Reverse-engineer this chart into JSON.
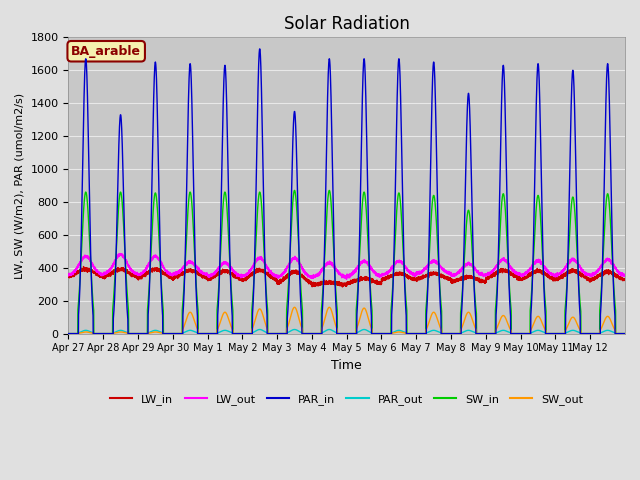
{
  "title": "Solar Radiation",
  "xlabel": "Time",
  "ylabel": "LW, SW (W/m2), PAR (umol/m2/s)",
  "ylim": [
    0,
    1800
  ],
  "yticks": [
    0,
    200,
    400,
    600,
    800,
    1000,
    1200,
    1400,
    1600,
    1800
  ],
  "background_color": "#e0e0e0",
  "plot_bg_color": "#c8c8c8",
  "grid_color": "#e8e8e8",
  "legend_label": "BA_arable",
  "legend_box_color": "#f5f0b0",
  "legend_box_edge": "#8b0000",
  "series": {
    "LW_in": {
      "color": "#cc0000",
      "lw": 1.0
    },
    "LW_out": {
      "color": "#ff00ff",
      "lw": 1.0
    },
    "PAR_in": {
      "color": "#0000cc",
      "lw": 1.0
    },
    "PAR_out": {
      "color": "#00cccc",
      "lw": 1.0
    },
    "SW_in": {
      "color": "#00cc00",
      "lw": 1.0
    },
    "SW_out": {
      "color": "#ff9900",
      "lw": 1.0
    }
  },
  "x_tick_labels": [
    "Apr 27",
    "Apr 28",
    "Apr 29",
    "Apr 30",
    "May 1",
    "May 2",
    "May 3",
    "May 4",
    "May 5",
    "May 6",
    "May 7",
    "May 8",
    "May 9",
    "May 10",
    "May 11",
    "May 12"
  ],
  "n_days": 16,
  "pts_per_day": 480,
  "par_in_peaks": [
    1670,
    1330,
    1650,
    1640,
    1630,
    1730,
    1350,
    1670,
    1670,
    1670,
    1650,
    1460,
    1630,
    1640,
    1600,
    1640
  ],
  "sw_in_peaks": [
    860,
    860,
    855,
    860,
    860,
    860,
    870,
    870,
    860,
    855,
    840,
    750,
    850,
    840,
    830,
    850
  ],
  "sw_out_peaks": [
    10,
    10,
    10,
    130,
    130,
    150,
    160,
    160,
    155,
    10,
    130,
    130,
    110,
    105,
    100,
    105
  ],
  "par_out_peaks": [
    20,
    20,
    20,
    20,
    20,
    25,
    25,
    25,
    25,
    20,
    20,
    20,
    20,
    20,
    20,
    20
  ],
  "lw_in_base": [
    340,
    335,
    330,
    330,
    320,
    315,
    295,
    295,
    300,
    320,
    325,
    310,
    325,
    320,
    318,
    318
  ],
  "lw_in_peak": [
    390,
    390,
    390,
    385,
    380,
    385,
    375,
    310,
    335,
    365,
    365,
    345,
    385,
    380,
    382,
    375
  ],
  "lw_out_base": [
    355,
    360,
    355,
    360,
    348,
    348,
    342,
    342,
    348,
    355,
    365,
    352,
    358,
    353,
    353,
    353
  ],
  "lw_out_peak": [
    470,
    480,
    470,
    435,
    430,
    460,
    460,
    430,
    440,
    440,
    440,
    425,
    450,
    440,
    450,
    450
  ]
}
